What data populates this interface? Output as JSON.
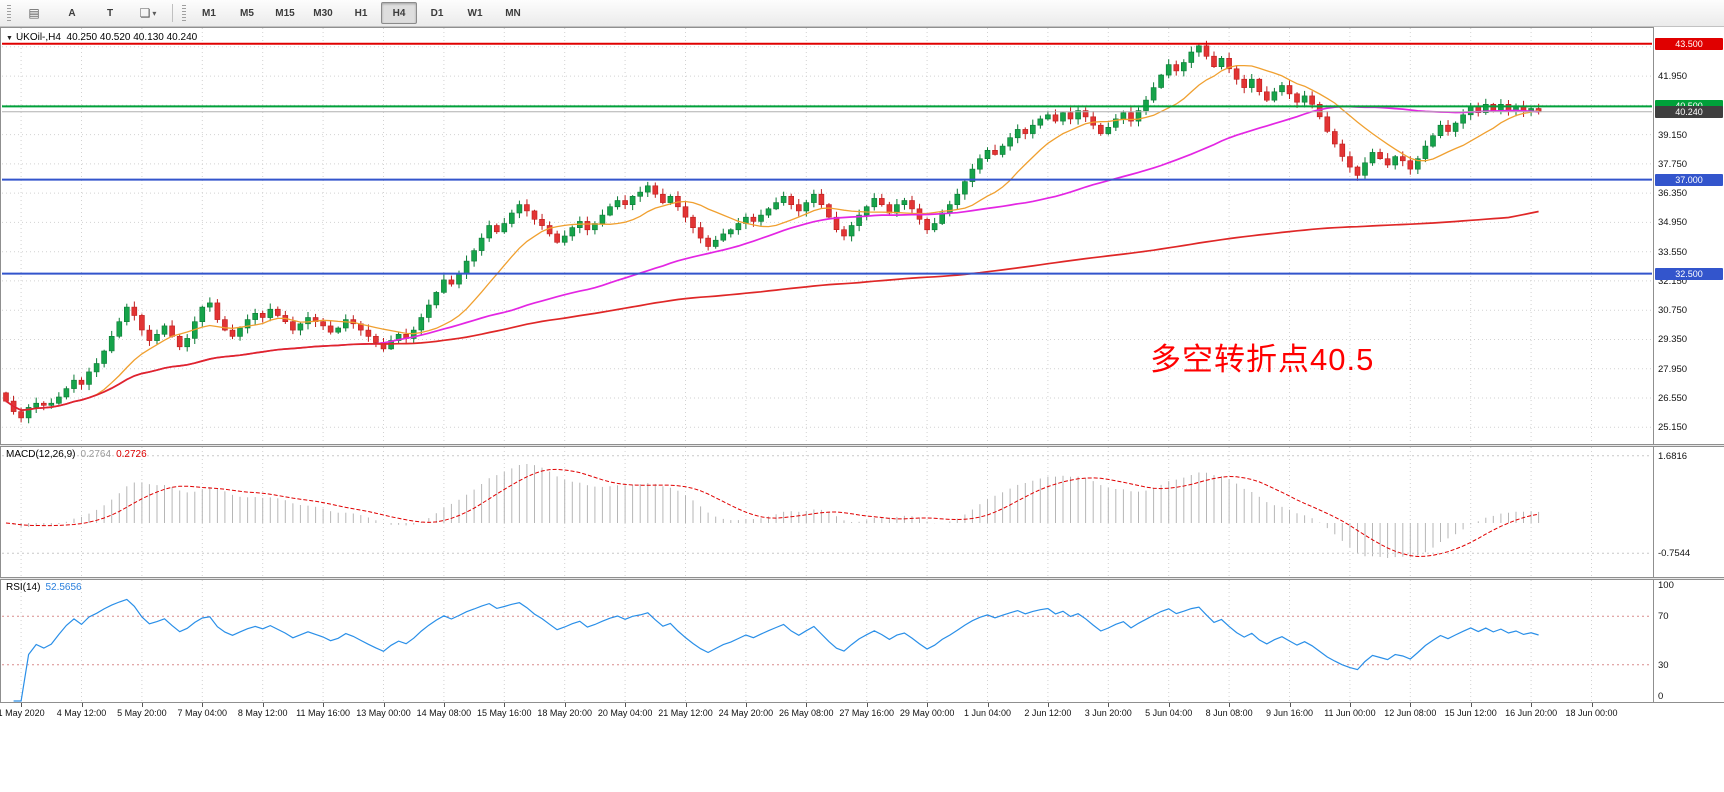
{
  "toolbar": {
    "icons": {
      "charts_grid": "▤",
      "shapes": "❏",
      "dropdown_caret": "▾"
    },
    "tool_a_label": "A",
    "tool_t_label": "T",
    "timeframes": [
      "M1",
      "M5",
      "M15",
      "M30",
      "H1",
      "H4",
      "D1",
      "W1",
      "MN"
    ],
    "active_timeframe": "H4"
  },
  "chart": {
    "symbol_line": {
      "collapse_arrow": "▼",
      "symbol": "UKOil-,H4",
      "ohlc": "40.250 40.520 40.130 40.240"
    },
    "annotation": {
      "text": "多空转折点40.5",
      "color": "#ff0000"
    }
  },
  "chart_data": {
    "type": "candlestick",
    "symbol": "UKOil-",
    "timeframe": "H4",
    "open_first": 26.8,
    "closes": [
      26.4,
      25.9,
      25.6,
      26.1,
      26.3,
      26.2,
      26.3,
      26.6,
      27.0,
      27.4,
      27.2,
      27.8,
      28.2,
      28.8,
      29.5,
      30.2,
      30.9,
      30.5,
      29.8,
      29.3,
      29.6,
      30.0,
      29.5,
      29.0,
      29.4,
      30.2,
      30.9,
      31.1,
      30.3,
      29.8,
      29.5,
      29.9,
      30.3,
      30.6,
      30.4,
      30.8,
      30.5,
      30.2,
      29.8,
      30.1,
      30.4,
      30.2,
      30.0,
      29.7,
      29.9,
      30.3,
      30.1,
      29.8,
      29.5,
      29.2,
      28.9,
      29.3,
      29.6,
      29.4,
      29.8,
      30.4,
      31.0,
      31.6,
      32.2,
      32.0,
      32.5,
      33.1,
      33.6,
      34.2,
      34.8,
      34.5,
      34.9,
      35.4,
      35.8,
      35.5,
      35.1,
      34.8,
      34.4,
      34.0,
      34.3,
      34.7,
      35.0,
      34.6,
      34.9,
      35.3,
      35.7,
      36.0,
      35.8,
      36.2,
      36.4,
      36.7,
      36.3,
      35.9,
      36.2,
      35.7,
      35.2,
      34.7,
      34.2,
      33.8,
      34.1,
      34.4,
      34.6,
      34.9,
      35.2,
      35.0,
      35.3,
      35.6,
      35.9,
      36.2,
      35.8,
      35.5,
      35.9,
      36.3,
      35.8,
      35.2,
      34.6,
      34.3,
      34.8,
      35.3,
      35.7,
      36.1,
      35.8,
      35.4,
      35.8,
      36.0,
      35.6,
      35.1,
      34.6,
      34.9,
      35.4,
      35.8,
      36.3,
      36.9,
      37.5,
      38.0,
      38.4,
      38.2,
      38.6,
      39.0,
      39.4,
      39.2,
      39.6,
      39.9,
      40.1,
      39.8,
      40.2,
      39.9,
      40.3,
      40.0,
      39.6,
      39.2,
      39.5,
      39.9,
      40.2,
      39.8,
      40.3,
      40.8,
      41.4,
      42.0,
      42.5,
      42.2,
      42.6,
      43.1,
      43.4,
      42.9,
      42.4,
      42.8,
      42.3,
      41.8,
      41.4,
      41.8,
      41.2,
      40.8,
      41.2,
      41.5,
      41.1,
      40.7,
      41.0,
      40.6,
      40.0,
      39.3,
      38.7,
      38.1,
      37.6,
      37.2,
      37.8,
      38.3,
      38.0,
      37.7,
      38.1,
      37.9,
      37.5,
      38.0,
      38.6,
      39.1,
      39.6,
      39.3,
      39.7,
      40.1,
      40.5,
      40.2,
      40.6,
      40.3,
      40.6,
      40.3,
      40.5,
      40.25,
      40.4,
      40.24
    ],
    "colors": {
      "candle_up": "#16a34a",
      "candle_up_border": "#0b7a35",
      "candle_down": "#e23434",
      "candle_down_border": "#bf1d1d",
      "grid": "#d2d2d2"
    },
    "moving_averages": [
      {
        "name": "fast",
        "period": 12,
        "color": "#f0a030"
      },
      {
        "name": "mid",
        "period": 50,
        "color": "#e326e3"
      },
      {
        "name": "slow",
        "period": 200,
        "color": "#df2727"
      }
    ],
    "price_lines": [
      {
        "price": 43.5,
        "label": "43.500",
        "color": "#e00000",
        "width": 2
      },
      {
        "price": 40.5,
        "label": "40.500",
        "color": "#00a13a",
        "width": 2
      },
      {
        "price": 37.0,
        "label": "37.000",
        "color": "#3355cc",
        "width": 2
      },
      {
        "price": 32.5,
        "label": "32.500",
        "color": "#3355cc",
        "width": 2
      }
    ],
    "bid_line": {
      "price": 40.24,
      "label": "40.240",
      "line_color": "#b0b0b0",
      "tag_color": "#3f3f3f"
    },
    "y_axis": [
      {
        "p": 41.95,
        "t": "41.950"
      },
      {
        "p": 39.15,
        "t": "39.150"
      },
      {
        "p": 37.75,
        "t": "37.750"
      },
      {
        "p": 36.35,
        "t": "36.350"
      },
      {
        "p": 34.95,
        "t": "34.950"
      },
      {
        "p": 33.55,
        "t": "33.550"
      },
      {
        "p": 32.15,
        "t": "32.150"
      },
      {
        "p": 30.75,
        "t": "30.750"
      },
      {
        "p": 29.35,
        "t": "29.350"
      },
      {
        "p": 27.95,
        "t": "27.950"
      },
      {
        "p": 26.55,
        "t": "26.550"
      },
      {
        "p": 25.15,
        "t": "25.150"
      }
    ],
    "grid_prices": [
      25.15,
      26.55,
      27.95,
      29.35,
      30.75,
      32.15,
      33.55,
      34.95,
      36.35,
      37.75,
      39.15,
      40.55,
      41.95,
      43.35
    ],
    "times": [
      "1 May 2020",
      "4 May 12:00",
      "5 May 20:00",
      "7 May 04:00",
      "8 May 12:00",
      "11 May 16:00",
      "13 May 00:00",
      "14 May 08:00",
      "15 May 16:00",
      "18 May 20:00",
      "20 May 04:00",
      "21 May 12:00",
      "24 May 20:00",
      "26 May 08:00",
      "27 May 16:00",
      "29 May 00:00",
      "1 Jun 04:00",
      "2 Jun 12:00",
      "3 Jun 20:00",
      "5 Jun 04:00",
      "8 Jun 08:00",
      "9 Jun 16:00",
      "11 Jun 00:00",
      "12 Jun 08:00",
      "15 Jun 12:00",
      "16 Jun 20:00",
      "18 Jun 00:00"
    ],
    "macd": {
      "label": "MACD(12,26,9)",
      "value_main": "0.2764",
      "value_signal": "0.2726",
      "fast": 12,
      "slow": 26,
      "signal": 9,
      "scale_max": 1.6816,
      "scale_max_text": "1.6816",
      "scale_min": -0.7544,
      "scale_min_text": "-0.7544",
      "hist_color": "#b6b6b6",
      "signal_color": "#e00000"
    },
    "rsi": {
      "label": "RSI(14)",
      "value": "52.5656",
      "period": 14,
      "levels": [
        {
          "v": 100,
          "t": "100"
        },
        {
          "v": 70,
          "t": "70"
        },
        {
          "v": 30,
          "t": "30"
        },
        {
          "v": 0,
          "t": "0"
        }
      ],
      "line_color": "#2a8fe8",
      "level_color": "#d98c8c"
    }
  }
}
